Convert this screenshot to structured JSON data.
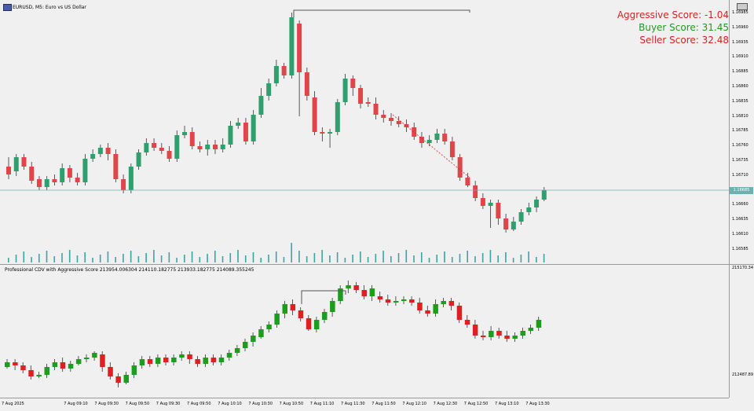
{
  "window": {
    "chart_title": "EURUSD, M5: Euro vs US Dollar",
    "sub_title": "Professional CDV with Aggressive Score 213954.006304 214110.182775 213933.182775 214089.355245"
  },
  "scores": {
    "aggressive": "Aggressive Score: -1.04",
    "buyer": "Buyer Score: 31.45",
    "seller": "Seller Score: 32.48"
  },
  "price_scale": [
    "1.16985",
    "1.16960",
    "1.16935",
    "1.16910",
    "1.16885",
    "1.16860",
    "1.16835",
    "1.16810",
    "1.16785",
    "1.16760",
    "1.16735",
    "1.16710",
    "1.16685",
    "1.16660",
    "1.16635",
    "1.16610",
    "1.16585"
  ],
  "current_price": "1.16685",
  "sub_scale": [
    "215170.34",
    "212487.89"
  ],
  "time_axis": [
    "7 Aug 2025",
    "7 Aug 09:10",
    "7 Aug 09:30",
    "7 Aug 09:50",
    "7 Aug 09:30",
    "7 Aug 09:50",
    "7 Aug 10:10",
    "7 Aug 10:30",
    "7 Aug 10:50",
    "7 Aug 11:10",
    "7 Aug 11:30",
    "7 Aug 11:50",
    "7 Aug 12:10",
    "7 Aug 12:30",
    "7 Aug 12:50",
    "7 Aug 13:10",
    "7 Aug 13:30"
  ],
  "colors": {
    "bull": "#2ea06e",
    "bear": "#e0454a",
    "sub_bull": "#1d9d1d",
    "sub_bear": "#e02020",
    "volume": "#3aa5a5",
    "level_line": "#6fb0b0",
    "bg": "#f0f0f0"
  }
}
